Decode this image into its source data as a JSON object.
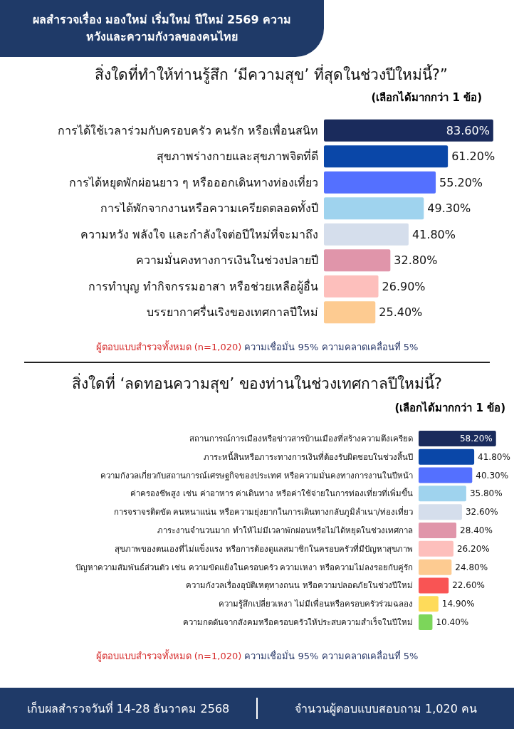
{
  "chart_data": [
    {
      "type": "bar",
      "orientation": "horizontal",
      "title": "สิ่งใดที่ทำให้ท่านรู้สึก ‘มีความสุข’ ที่สุดในช่วงปีใหม่นี้?”",
      "subtitle": "(เลือกได้มากกว่า 1 ข้อ)",
      "categories": [
        "การได้ใช้เวลาร่วมกับครอบครัว คนรัก หรือเพื่อนสนิท",
        "สุขภาพร่างกายและสุขภาพจิตที่ดี",
        "การได้หยุดพักผ่อนยาว ๆ หรือออกเดินทางท่องเที่ยว",
        "การได้พักจากงานหรือความเครียดตลอดทั้งปี",
        "ความหวัง พลังใจ และกำลังใจต่อปีใหม่ที่จะมาถึง",
        "ความมั่นคงทางการเงินในช่วงปลายปี",
        "การทำบุญ ทำกิจกรรมอาสา หรือช่วยเหลือผู้อื่น",
        "บรรยากาศรื่นเริงของเทศกาลปีใหม่"
      ],
      "values": [
        83.6,
        61.2,
        55.2,
        49.3,
        41.8,
        32.8,
        26.9,
        25.4
      ],
      "value_labels": [
        "83.60%",
        "61.20%",
        "55.20%",
        "49.30%",
        "41.80%",
        "32.80%",
        "26.90%",
        "25.40%"
      ],
      "colors": [
        "#1a2b5c",
        "#0a47a8",
        "#5470ff",
        "#9fd3ee",
        "#d5deec",
        "#e095aa",
        "#fdbfbc",
        "#fdcb91"
      ],
      "annotations": [
        "ผลสำรวจเรื่อง มองใหม่ เริ่มใหม่ ปีใหม่ 2569 ความหวังและความกังวลของคนไทย",
        "ผู้ตอบแบบสำรวจทั้งหมด (n=1,020)",
        "ความเชื่อมั่น 95% ความคลาดเคลื่อนที่ 5%"
      ]
    },
    {
      "type": "bar",
      "orientation": "horizontal",
      "title": "สิ่งใดที่ ‘ลดทอนความสุข’ ของท่านในช่วงเทศกาลปีใหม่นี้?",
      "subtitle": "(เลือกได้มากกว่า 1 ข้อ)",
      "categories": [
        "สถานการณ์การเมืองหรือข่าวสารบ้านเมืองที่สร้างความตึงเครียด",
        "ภาระหนี้สินหรือภาระทางการเงินที่ต้องรับผิดชอบในช่วงสิ้นปี",
        "ความกังวลเกี่ยวกับสถานการณ์เศรษฐกิจของประเทศ หรือความมั่นคงทางการงานในปีหน้า",
        "ค่าครองชีพสูง เช่น ค่าอาหาร ค่าเดินทาง หรือค่าใช้จ่ายในการท่องเที่ยวที่เพิ่มขึ้น",
        "การจราจรติดขัด คนหนาแน่น หรือความยุ่งยากในการเดินทางกลับภูมิลำเนา/ท่องเที่ยว",
        "ภาระงานจำนวนมาก ทำให้ไม่มีเวลาพักผ่อนหรือไม่ได้หยุดในช่วงเทศกาล",
        "สุขภาพของตนเองที่ไม่แข็งแรง หรือการต้องดูแลสมาชิกในครอบครัวที่มีปัญหาสุขภาพ",
        "ปัญหาความสัมพันธ์ส่วนตัว เช่น ความขัดแย้งในครอบครัว ความเหงา หรือความไม่ลงรอยกับคู่รัก",
        "ความกังวลเรื่องอุบัติเหตุทางถนน หรือความปลอดภัยในช่วงปีใหม่",
        "ความรู้สึกเปลี่ยวเหงา ไม่มีเพื่อนหรือครอบครัวร่วมฉลอง",
        "ความกดดันจากสังคมหรือครอบครัวให้ประสบความสำเร็จในปีใหม่"
      ],
      "values": [
        58.2,
        41.8,
        40.3,
        35.8,
        32.6,
        28.4,
        26.2,
        24.8,
        22.6,
        14.9,
        10.4
      ],
      "value_labels": [
        "58.20%",
        "41.80%",
        "40.30%",
        "35.80%",
        "32.60%",
        "28.40%",
        "26.20%",
        "24.80%",
        "22.60%",
        "14.90%",
        "10.40%"
      ],
      "colors": [
        "#1a2b5c",
        "#0a47a8",
        "#5470ff",
        "#9fd3ee",
        "#d5deec",
        "#e095aa",
        "#fdbfbc",
        "#fdcb91",
        "#f95454",
        "#fedb5a",
        "#7cd65a"
      ],
      "annotations": [
        "ผู้ตอบแบบสำรวจทั้งหมด (n=1,020)",
        "ความเชื่อมั่น 95% ความคลาดเคลื่อนที่ 5%",
        "เก็บผลสำรวจวันที่ 14-28 ธันวาคม 2568",
        "จำนวนผู้ตอบแบบสอบถาม 1,020 คน"
      ]
    }
  ]
}
